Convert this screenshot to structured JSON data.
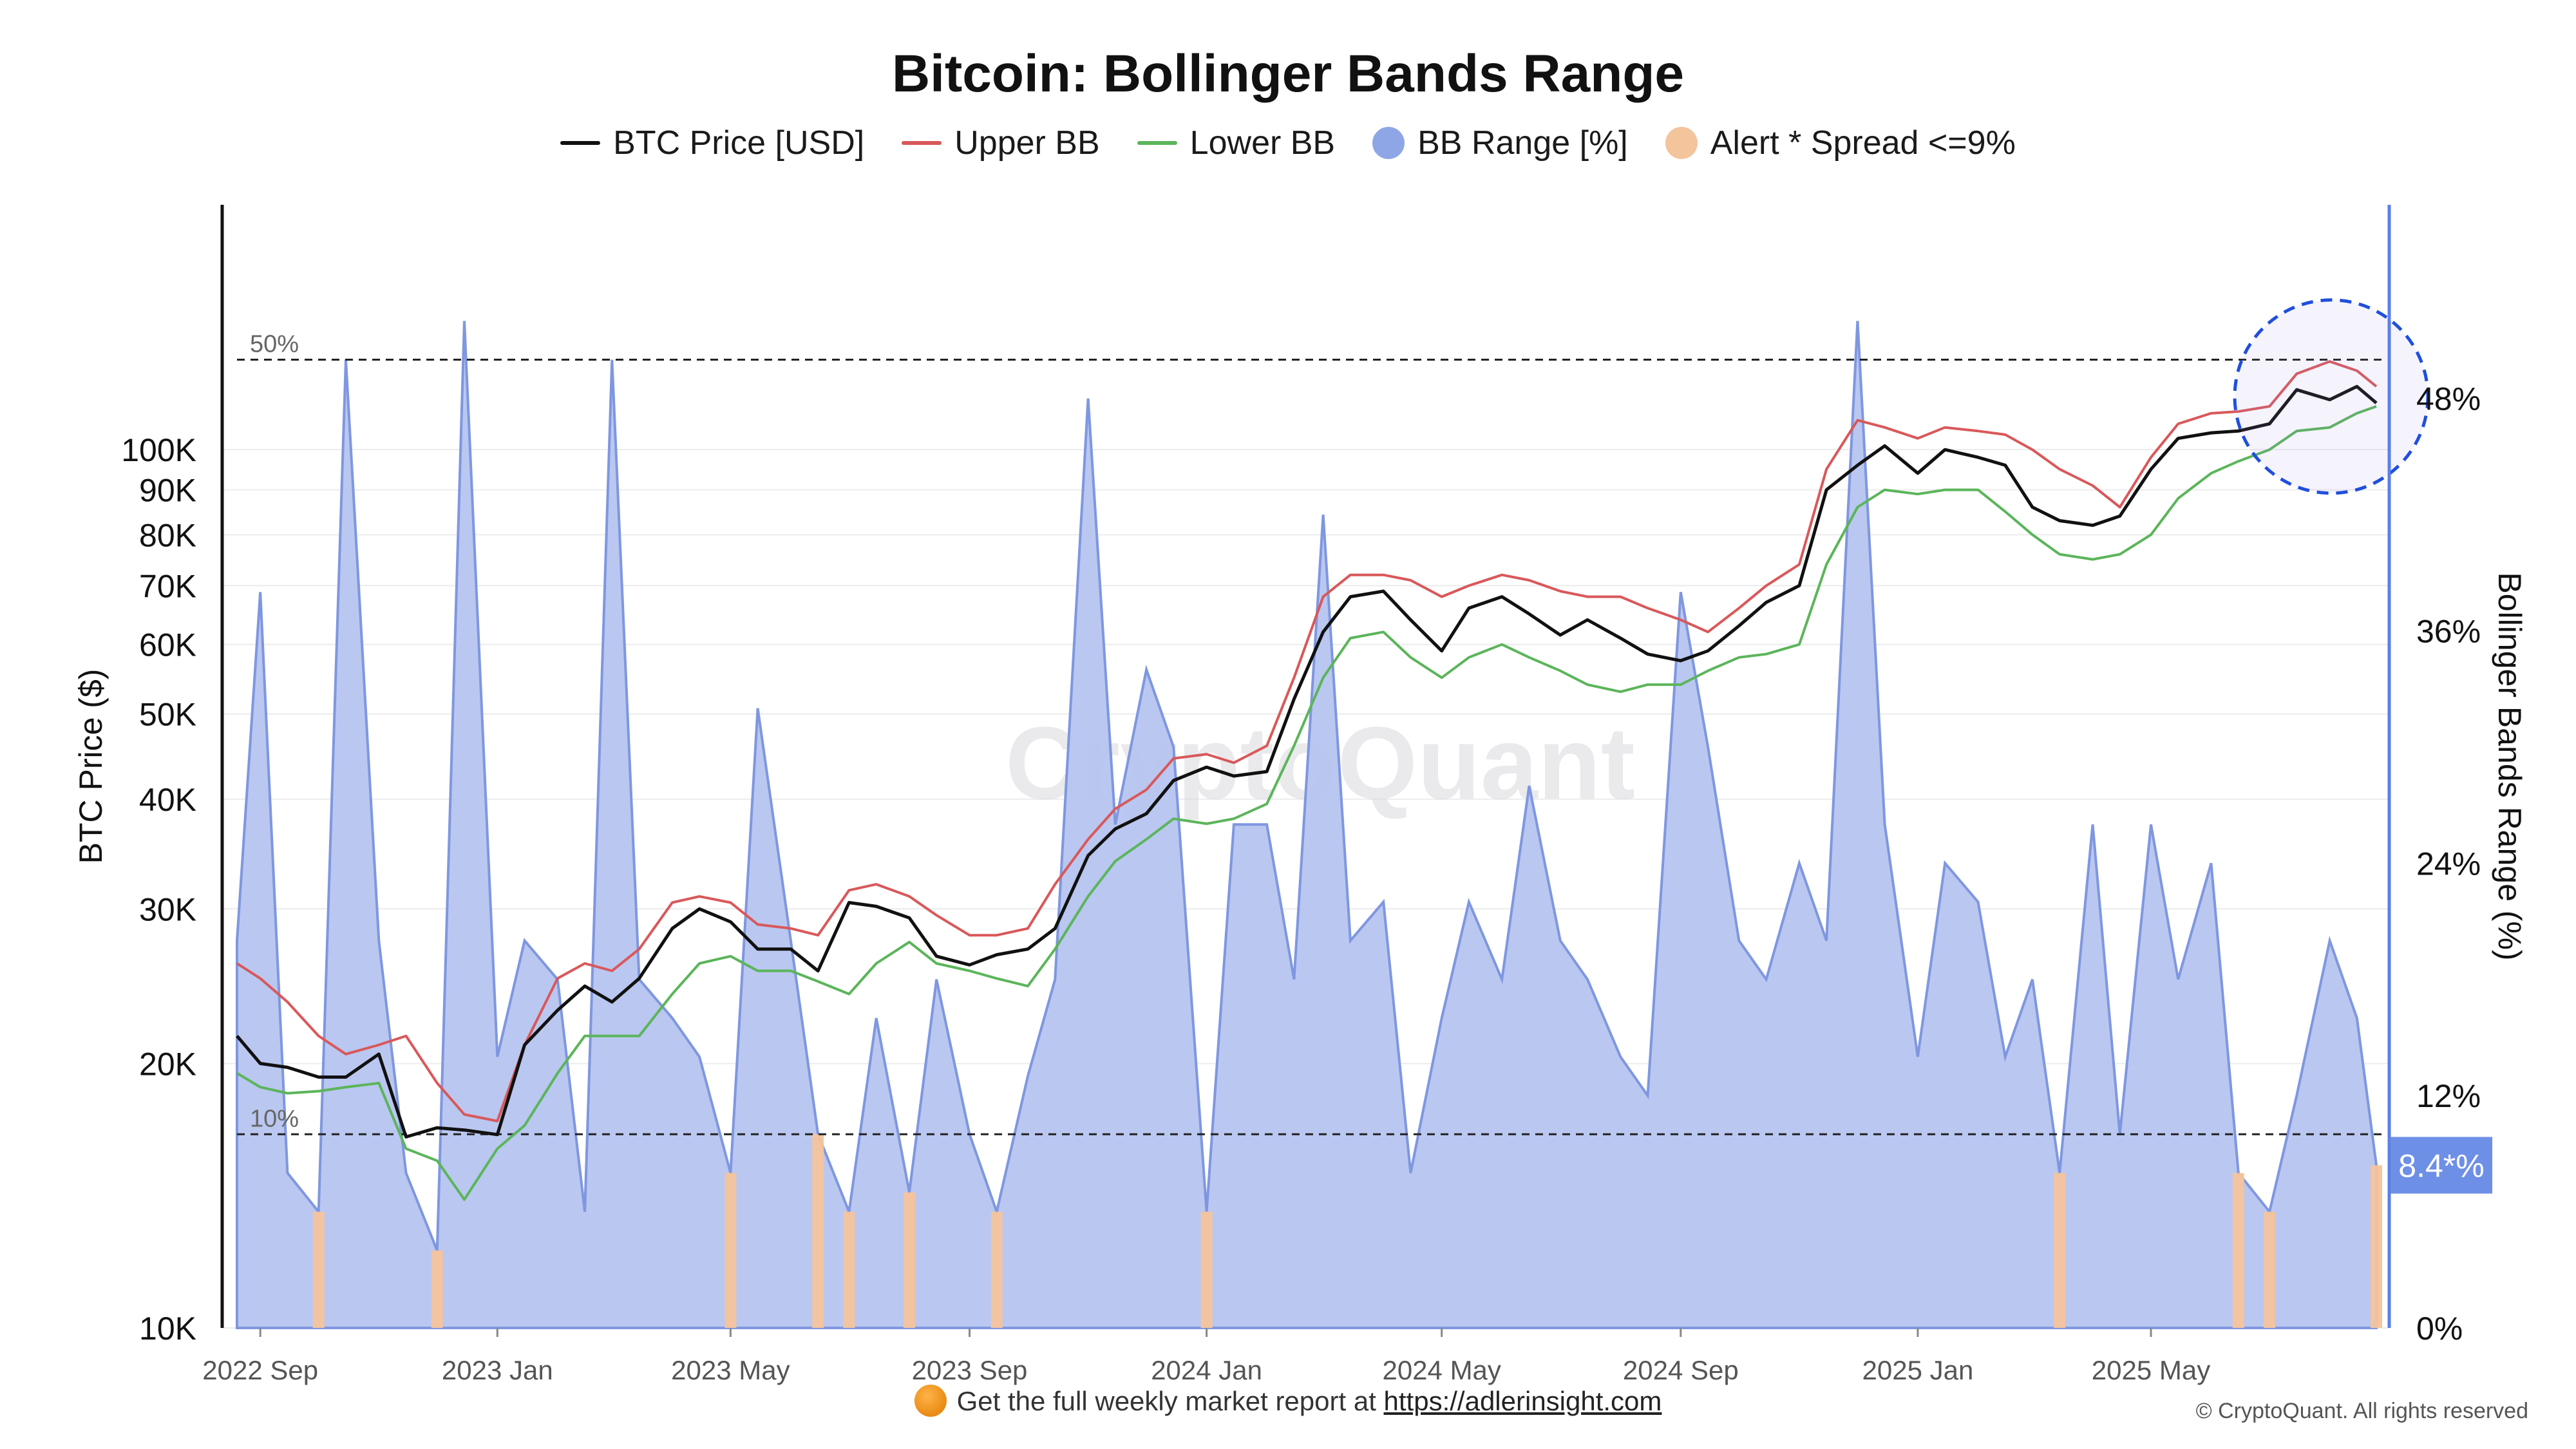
{
  "title": "Bitcoin: Bollinger Bands Range",
  "legend": [
    {
      "label": "BTC Price [USD]",
      "kind": "line",
      "color": "#111111"
    },
    {
      "label": "Upper BB",
      "kind": "line",
      "color": "#d9585a"
    },
    {
      "label": "Lower BB",
      "kind": "line",
      "color": "#5bb55a"
    },
    {
      "label": "BB Range [%]",
      "kind": "dot",
      "color": "#8fa6e6"
    },
    {
      "label": "Alert * Spread <=9%",
      "kind": "dot",
      "color": "#f4c49c"
    }
  ],
  "watermark": "CryptoQuant",
  "footer": {
    "text": "Get the full weekly market report at ",
    "link": "https://adlerinsight.com"
  },
  "copyright": "© CryptoQuant. All rights reserved",
  "chart_data": {
    "type": "line",
    "x": [
      "2022-08-20",
      "2022-09-01",
      "2022-09-15",
      "2022-10-01",
      "2022-10-15",
      "2022-11-01",
      "2022-11-15",
      "2022-12-01",
      "2022-12-15",
      "2023-01-01",
      "2023-01-15",
      "2023-02-01",
      "2023-02-15",
      "2023-03-01",
      "2023-03-15",
      "2023-04-01",
      "2023-04-15",
      "2023-05-01",
      "2023-05-15",
      "2023-06-01",
      "2023-06-15",
      "2023-07-01",
      "2023-07-15",
      "2023-08-01",
      "2023-08-15",
      "2023-09-01",
      "2023-09-15",
      "2023-10-01",
      "2023-10-15",
      "2023-11-01",
      "2023-11-15",
      "2023-12-01",
      "2023-12-15",
      "2024-01-01",
      "2024-01-15",
      "2024-02-01",
      "2024-02-15",
      "2024-03-01",
      "2024-03-15",
      "2024-04-01",
      "2024-04-15",
      "2024-05-01",
      "2024-05-15",
      "2024-06-01",
      "2024-06-15",
      "2024-07-01",
      "2024-07-15",
      "2024-08-01",
      "2024-08-15",
      "2024-09-01",
      "2024-09-15",
      "2024-10-01",
      "2024-10-15",
      "2024-11-01",
      "2024-11-15",
      "2024-12-01",
      "2024-12-15",
      "2025-01-01",
      "2025-01-15",
      "2025-02-01",
      "2025-02-15",
      "2025-03-01",
      "2025-03-15",
      "2025-04-01",
      "2025-04-15",
      "2025-05-01",
      "2025-05-15",
      "2025-06-01",
      "2025-06-15",
      "2025-07-01",
      "2025-07-15",
      "2025-08-01",
      "2025-08-15",
      "2025-08-25"
    ],
    "series": [
      {
        "name": "BTC Price [USD]",
        "axis": "left",
        "color": "#111111",
        "values": [
          21500,
          20000,
          19800,
          19300,
          19300,
          20500,
          16500,
          16900,
          16800,
          16600,
          21000,
          23000,
          24500,
          23500,
          25000,
          28500,
          30000,
          29000,
          27000,
          27000,
          25500,
          30500,
          30200,
          29300,
          26500,
          25900,
          26600,
          27000,
          28500,
          34500,
          37000,
          38500,
          42000,
          43500,
          42500,
          43000,
          52000,
          62000,
          68000,
          69000,
          64000,
          59000,
          66000,
          68000,
          65000,
          61500,
          64000,
          61000,
          58500,
          57500,
          59000,
          63000,
          67000,
          70000,
          90000,
          96000,
          101000,
          94000,
          100000,
          98000,
          96000,
          86000,
          83000,
          82000,
          84000,
          95000,
          103000,
          104500,
          105000,
          107000,
          117000,
          114000,
          118000,
          113000
        ]
      },
      {
        "name": "Upper BB",
        "axis": "left",
        "color": "#d9585a",
        "values": [
          26000,
          25000,
          23500,
          21500,
          20500,
          21000,
          21500,
          19000,
          17500,
          17200,
          21000,
          25000,
          26000,
          25500,
          27000,
          30500,
          31000,
          30500,
          28800,
          28500,
          28000,
          31500,
          32000,
          31000,
          29500,
          28000,
          28000,
          28500,
          32000,
          36000,
          39000,
          41000,
          44500,
          45000,
          44000,
          46000,
          55000,
          68000,
          72000,
          72000,
          71000,
          68000,
          70000,
          72000,
          71000,
          69000,
          68000,
          68000,
          66000,
          64000,
          62000,
          66000,
          70000,
          74000,
          95000,
          108000,
          106000,
          103000,
          106000,
          105000,
          104000,
          100000,
          95000,
          91000,
          86000,
          98000,
          107000,
          110000,
          110500,
          112000,
          122000,
          126000,
          123000,
          118000
        ]
      },
      {
        "name": "Lower BB",
        "axis": "left",
        "color": "#5bb55a",
        "values": [
          19500,
          18800,
          18500,
          18600,
          18800,
          19000,
          16000,
          15500,
          14000,
          16000,
          17000,
          19500,
          21500,
          21500,
          21500,
          24000,
          26000,
          26500,
          25500,
          25500,
          24800,
          24000,
          26000,
          27500,
          26000,
          25500,
          25000,
          24500,
          27000,
          31000,
          34000,
          36000,
          38000,
          37500,
          38000,
          39500,
          46000,
          55000,
          61000,
          62000,
          58000,
          55000,
          58000,
          60000,
          58000,
          56000,
          54000,
          53000,
          54000,
          54000,
          56000,
          58000,
          58500,
          60000,
          74000,
          86000,
          90000,
          89000,
          90000,
          90000,
          85000,
          80000,
          76000,
          75000,
          76000,
          80000,
          88000,
          94000,
          97000,
          100000,
          105000,
          106000,
          110000,
          112000
        ]
      },
      {
        "name": "BB Range [%]",
        "axis": "right",
        "color": "#8fa6e6",
        "values": [
          20,
          38,
          8,
          6,
          50,
          20,
          8,
          4,
          52,
          14,
          20,
          18,
          6,
          50,
          18,
          16,
          14,
          8,
          32,
          20,
          10,
          6,
          16,
          7,
          18,
          10,
          6,
          13,
          18,
          48,
          26,
          34,
          30,
          6,
          26,
          26,
          18,
          42,
          20,
          22,
          8,
          16,
          22,
          18,
          28,
          20,
          18,
          14,
          12,
          38,
          30,
          20,
          18,
          24,
          20,
          52,
          26,
          14,
          24,
          22,
          14,
          18,
          8,
          26,
          10,
          26,
          18,
          24,
          8,
          6,
          12,
          20,
          16,
          8.4
        ]
      },
      {
        "name": "Alert * Spread <=9%",
        "axis": "right",
        "color": "#f4c49c",
        "values": [
          0,
          0,
          0,
          1,
          0,
          0,
          0,
          1,
          0,
          0,
          0,
          0,
          0,
          0,
          0,
          0,
          0,
          1,
          0,
          0,
          1,
          1,
          0,
          1,
          0,
          0,
          1,
          0,
          0,
          0,
          0,
          0,
          0,
          1,
          0,
          0,
          0,
          0,
          0,
          0,
          0,
          0,
          0,
          0,
          0,
          0,
          0,
          0,
          0,
          0,
          0,
          0,
          0,
          0,
          0,
          0,
          0,
          0,
          0,
          0,
          0,
          0,
          1,
          0,
          0,
          0,
          0,
          0,
          1,
          1,
          0,
          0,
          0,
          1
        ]
      }
    ],
    "left_axis": {
      "label": "BTC Price ($)",
      "scale": "log",
      "range": [
        10000,
        190000
      ],
      "ticks": [
        "10K",
        "20K",
        "30K",
        "40K",
        "50K",
        "60K",
        "70K",
        "80K",
        "90K",
        "100K"
      ]
    },
    "right_axis": {
      "label": "Bollinger Bands Range (%)",
      "range": [
        0,
        58
      ],
      "ticks": [
        "0%",
        "12%",
        "24%",
        "36%",
        "48%"
      ]
    },
    "x_ticks": [
      "2022 Sep",
      "2023 Jan",
      "2023 May",
      "2023 Sep",
      "2024 Jan",
      "2024 May",
      "2024 Sep",
      "2025 Jan",
      "2025 May"
    ],
    "reference_lines": [
      {
        "label": "50%",
        "value": 50
      },
      {
        "label": "10%",
        "value": 10
      }
    ],
    "current_value_label": "8.4*%",
    "grid": true
  }
}
